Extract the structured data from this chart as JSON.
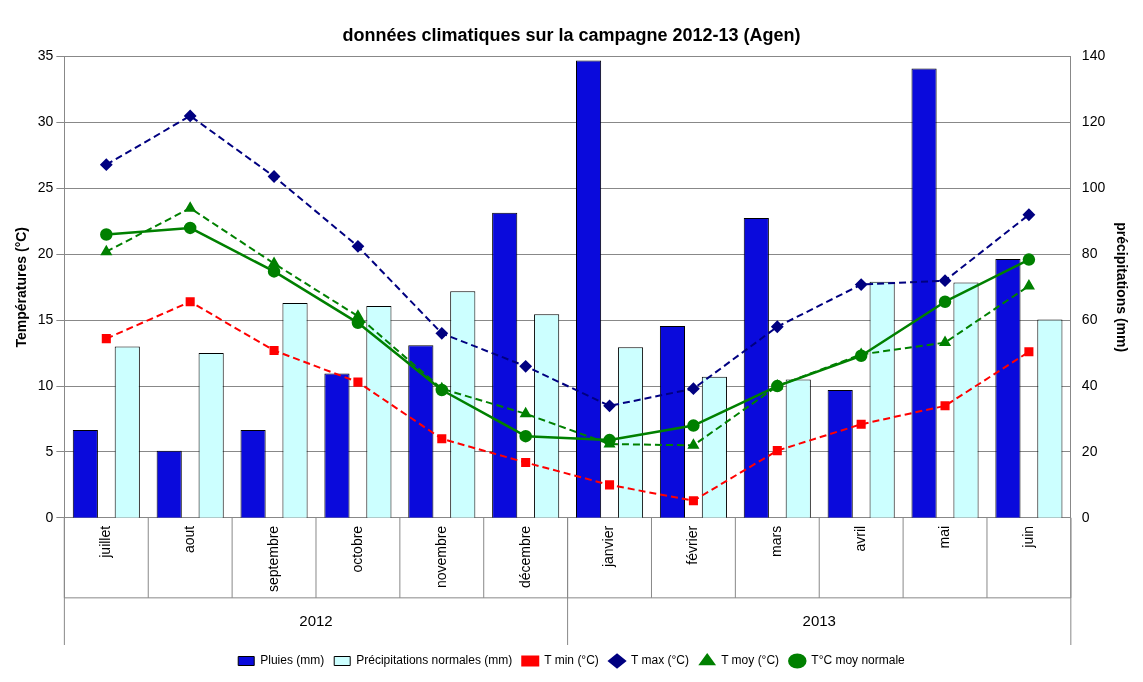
{
  "chart_data": {
    "type": "bar",
    "title": "données climatiques sur la campagne 2012-13 (Agen)",
    "categories": [
      "juillet",
      "aout",
      "septembre",
      "octobre",
      "novembre",
      "décembre",
      "janvier",
      "février",
      "mars",
      "avril",
      "mai",
      "juin"
    ],
    "ylabel": "Températures (°C)",
    "y2label": "précipitations (mm)",
    "ylim": [
      0,
      35
    ],
    "yticks": [
      0,
      5,
      10,
      15,
      20,
      25,
      30,
      35
    ],
    "y2lim": [
      0,
      140
    ],
    "y2ticks": [
      0,
      20,
      40,
      60,
      80,
      100,
      120,
      140
    ],
    "grid": "y",
    "legend": "bottom",
    "annotations": [
      "2012",
      "2013"
    ],
    "series": [
      {
        "name": "Pluies (mm)",
        "axis": "y2",
        "color": "#0a0adc",
        "values": [
          26.7,
          20.4,
          26.7,
          43.8,
          52.4,
          92.6,
          138.8,
          58.2,
          91,
          38.8,
          136.4,
          78.6
        ]
      },
      {
        "name": "Précipitations normales (mm)",
        "axis": "y2",
        "color": "#ccffff",
        "values": [
          52,
          50,
          65.2,
          64.3,
          68.8,
          61.8,
          51.8,
          42.8,
          42,
          71.7,
          71.4,
          60.2
        ]
      },
      {
        "name": "T min (°C)",
        "type": "line",
        "color": "#ff0000",
        "marker": "square",
        "line_style": "dashed",
        "values": [
          13.6,
          16.4,
          12.7,
          10.3,
          6.0,
          4.2,
          2.5,
          1.3,
          5.1,
          7.1,
          8.5,
          12.6
        ]
      },
      {
        "name": "T max (°C)",
        "type": "line",
        "color": "#000080",
        "marker": "diamond",
        "line_style": "dashed",
        "values": [
          26.8,
          30.5,
          25.9,
          20.6,
          14.0,
          11.5,
          8.5,
          9.8,
          14.5,
          17.7,
          18.0,
          23.0
        ]
      },
      {
        "name": "T moy (°C)",
        "type": "line",
        "color": "#008000",
        "marker": "triangle",
        "line_style": "dashed",
        "values": [
          20.2,
          23.5,
          19.3,
          15.3,
          9.8,
          7.9,
          5.6,
          5.5,
          10.0,
          12.4,
          13.3,
          17.6
        ]
      },
      {
        "name": "T°C moy normale",
        "type": "line",
        "color": "#008000",
        "marker": "circle",
        "line_style": "solid",
        "values": [
          21.5,
          22.0,
          18.7,
          14.8,
          9.7,
          6.2,
          5.9,
          7.0,
          10.0,
          12.3,
          16.4,
          19.6
        ]
      }
    ]
  }
}
